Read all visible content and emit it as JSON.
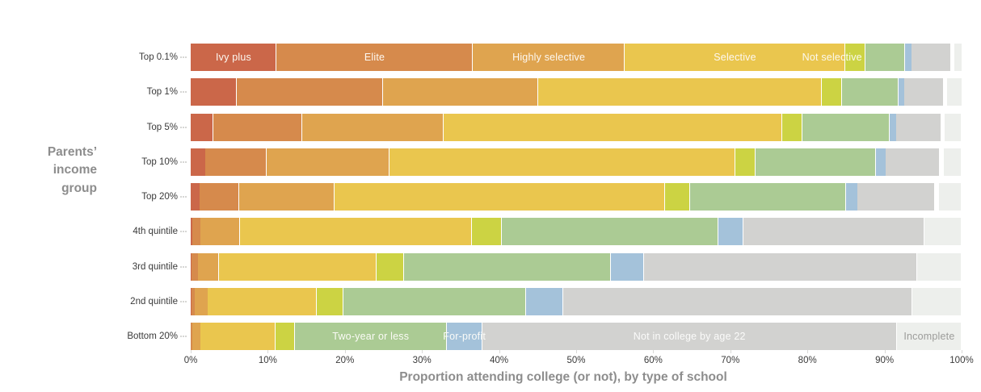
{
  "chart_data": {
    "type": "bar",
    "variant": "stacked-horizontal",
    "title": "",
    "xlabel": "Proportion attending college (or not), by type of school",
    "ylabel_lines": [
      "Parents’",
      "income",
      "group"
    ],
    "xlim": [
      0,
      100
    ],
    "x_ticks": [
      "0%",
      "10%",
      "20%",
      "30%",
      "40%",
      "50%",
      "60%",
      "70%",
      "80%",
      "90%",
      "100%"
    ],
    "grid": false,
    "legend": "labels-inside-bars",
    "categories": [
      "Top 0.1%",
      "Top 1%",
      "Top 5%",
      "Top 10%",
      "Top 20%",
      "4th quintile",
      "3rd quintile",
      "2nd quintile",
      "Bottom 20%"
    ],
    "series": [
      {
        "key": "ivy-plus",
        "name": "Ivy plus",
        "color": "#cb6749",
        "label_row": 0,
        "label_color": "#fdf8f1",
        "values": [
          11.1,
          6.0,
          2.9,
          1.9,
          1.2,
          0.2,
          0.1,
          0.1,
          0.05
        ]
      },
      {
        "key": "elite",
        "name": "Elite",
        "color": "#d68a4c",
        "label_row": 0,
        "label_color": "#fdf8f1",
        "values": [
          25.5,
          18.9,
          11.6,
          8.0,
          5.1,
          1.1,
          0.8,
          0.4,
          0.15
        ]
      },
      {
        "key": "highly-selective",
        "name": "Highly selective",
        "color": "#dfa44f",
        "label_row": 0,
        "label_color": "#fdf8f1",
        "values": [
          19.7,
          20.2,
          18.3,
          15.9,
          12.4,
          5.1,
          2.8,
          1.7,
          1.1
        ]
      },
      {
        "key": "selective",
        "name": "Selective",
        "color": "#eac64e",
        "label_row": 0,
        "label_color": "#fdf8f1",
        "values": [
          28.6,
          36.8,
          43.9,
          44.8,
          42.8,
          30.1,
          20.4,
          14.2,
          9.7
        ]
      },
      {
        "key": "not-selective",
        "name": "Not selective",
        "color": "#ccd343",
        "label_row": 0,
        "label_color": "#fbf9ee",
        "label_shift": -3,
        "values": [
          2.6,
          2.6,
          2.7,
          2.7,
          3.3,
          3.9,
          3.6,
          3.4,
          2.5
        ]
      },
      {
        "key": "two-year-or-less",
        "name": "Two-year or less",
        "color": "#abcb94",
        "label_row": 8,
        "label_color": "#fbfbf6",
        "values": [
          5.2,
          7.3,
          11.3,
          15.6,
          20.2,
          28.1,
          26.8,
          23.7,
          19.7
        ]
      },
      {
        "key": "for-profit",
        "name": "For-profit",
        "color": "#a4c2da",
        "label_row": 8,
        "label_color": "#fafbf8",
        "values": [
          0.8,
          0.8,
          0.8,
          1.2,
          1.5,
          3.2,
          4.3,
          4.8,
          4.6
        ]
      },
      {
        "key": "not-in-college",
        "name": "Not in college by age 22",
        "color": "#d2d2d0",
        "label_row": 8,
        "label_color": "#fbfbfa",
        "values": [
          5.1,
          5.1,
          5.9,
          7.1,
          10.1,
          23.5,
          35.4,
          45.3,
          53.8
        ]
      },
      {
        "key": "incomplete",
        "name": "Incomplete",
        "color": "#edefec",
        "label_row": 8,
        "label_color": "#9c9c9a",
        "values": [
          0.95,
          1.85,
          2.15,
          2.35,
          2.95,
          4.8,
          5.8,
          6.4,
          8.4
        ]
      }
    ],
    "white_gap_before_incomplete": [
      0.45,
      0.45,
      0.45,
      0.45,
      0.45,
      0,
      0,
      0,
      0
    ],
    "colors": {
      "background": "#ffffff",
      "axis_text": "#3a3a3a",
      "axis_title": "#8d8d8d",
      "tick_mark": "#d9d9d7",
      "segment_separator": "#ffffff"
    }
  }
}
